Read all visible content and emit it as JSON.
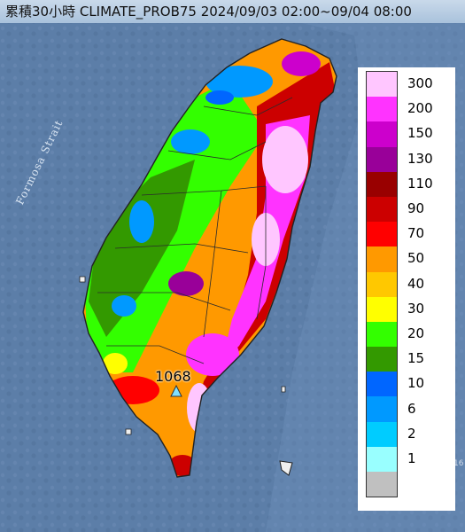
{
  "title": "累積30小時 CLIMATE_PROB75 2024/09/03 02:00~09/04 08:00",
  "strait_label": "Formosa Strait",
  "max_value_label": "1068",
  "edge_label": "16",
  "legend": {
    "items": [
      {
        "label": "300",
        "color": "#ffc6ff"
      },
      {
        "label": "200",
        "color": "#ff33ff"
      },
      {
        "label": "150",
        "color": "#cc00cc"
      },
      {
        "label": "130",
        "color": "#990099"
      },
      {
        "label": "110",
        "color": "#990000"
      },
      {
        "label": "90",
        "color": "#cc0000"
      },
      {
        "label": "70",
        "color": "#ff0000"
      },
      {
        "label": "50",
        "color": "#ff9900"
      },
      {
        "label": "40",
        "color": "#ffc800"
      },
      {
        "label": "30",
        "color": "#ffff00"
      },
      {
        "label": "20",
        "color": "#33ff00"
      },
      {
        "label": "15",
        "color": "#339900"
      },
      {
        "label": "10",
        "color": "#0066ff"
      },
      {
        "label": "6",
        "color": "#0099ff"
      },
      {
        "label": "2",
        "color": "#00ccff"
      },
      {
        "label": "1",
        "color": "#99ffff"
      },
      {
        "label": "",
        "color": "#c0c0c0"
      }
    ]
  },
  "colors": {
    "sea": "#5c7ea8",
    "island_outline": "#222222",
    "marker": "#7fe0ff"
  }
}
